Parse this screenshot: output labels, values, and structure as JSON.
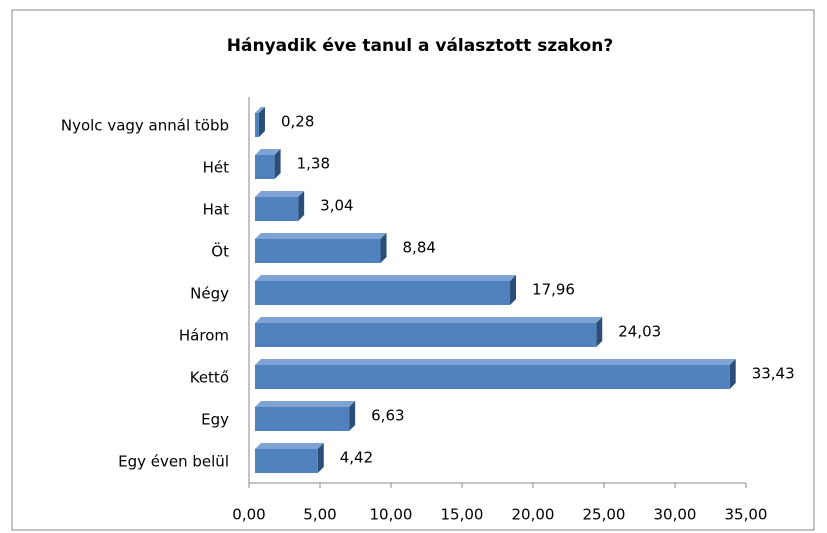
{
  "chart_data": {
    "type": "bar",
    "orientation": "horizontal",
    "title": "Hányadik éve tanul a választott szakon?",
    "categories": [
      "Nyolc vagy annál több",
      "Hét",
      "Hat",
      "Öt",
      "Négy",
      "Három",
      "Kettő",
      "Egy",
      "Egy éven belül"
    ],
    "values": [
      0.28,
      1.38,
      3.04,
      8.84,
      17.96,
      24.03,
      33.43,
      6.63,
      4.42
    ],
    "value_labels": [
      "0,28",
      "1,38",
      "3,04",
      "8,84",
      "17,96",
      "24,03",
      "33,43",
      "6,63",
      "4,42"
    ],
    "color": "#4f81bd",
    "xlim": [
      0,
      35
    ],
    "xticks": [
      {
        "value": 0,
        "label": "0,00"
      },
      {
        "value": 5,
        "label": "5,00"
      },
      {
        "value": 10,
        "label": "10,00"
      },
      {
        "value": 15,
        "label": "15,00"
      },
      {
        "value": 20,
        "label": "20,00"
      },
      {
        "value": 25,
        "label": "25,00"
      },
      {
        "value": 30,
        "label": "30,00"
      },
      {
        "value": 35,
        "label": "35,00"
      }
    ],
    "grid": false
  }
}
